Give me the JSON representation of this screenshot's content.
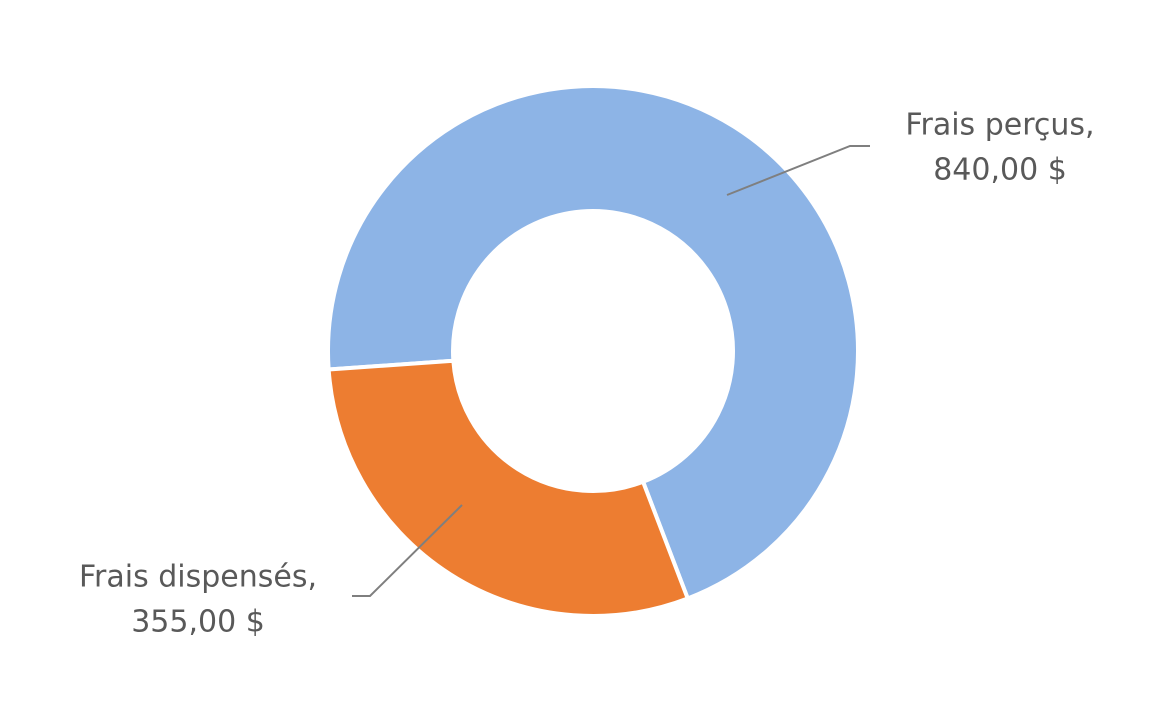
{
  "chart_data": {
    "type": "donut",
    "categories": [
      "Frais perçus,",
      "Frais dispensés,"
    ],
    "values": [
      840,
      355
    ],
    "value_labels": [
      "840,00 $",
      "355,00 $"
    ],
    "colors": [
      "#8db4e6",
      "#ed7d31"
    ]
  }
}
